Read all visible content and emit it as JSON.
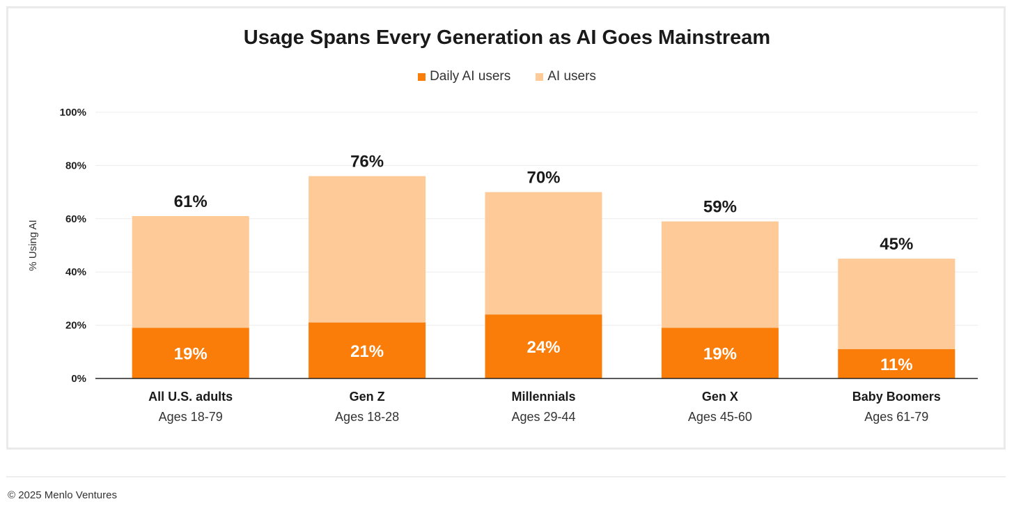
{
  "chart_data": {
    "type": "bar",
    "stacked": true,
    "title": "Usage Spans Every Generation as AI Goes Mainstream",
    "ylabel": "% Using AI",
    "xlabel": "",
    "ylim": [
      0,
      100
    ],
    "yticks": [
      0,
      20,
      40,
      60,
      80,
      100
    ],
    "ytick_labels": [
      "0%",
      "20%",
      "40%",
      "60%",
      "80%",
      "100%"
    ],
    "grid": true,
    "legend_position": "top-center",
    "categories": [
      "All U.S. adults",
      "Gen Z",
      "Millennials",
      "Gen X",
      "Baby Boomers"
    ],
    "category_sublabels": [
      "Ages 18-79",
      "Ages 18-28",
      "Ages 29-44",
      "Ages 45-60",
      "Ages 61-79"
    ],
    "series": [
      {
        "name": "Daily AI users",
        "color": "#fa7d0a",
        "values": [
          19,
          21,
          24,
          19,
          11
        ],
        "labels": [
          "19%",
          "21%",
          "24%",
          "19%",
          "11%"
        ]
      },
      {
        "name": "AI users",
        "color": "#fdca98",
        "values": [
          61,
          76,
          70,
          59,
          45
        ],
        "labels": [
          "61%",
          "76%",
          "70%",
          "59%",
          "45%"
        ]
      }
    ]
  },
  "footer": {
    "copyright": "© 2025 Menlo Ventures"
  }
}
